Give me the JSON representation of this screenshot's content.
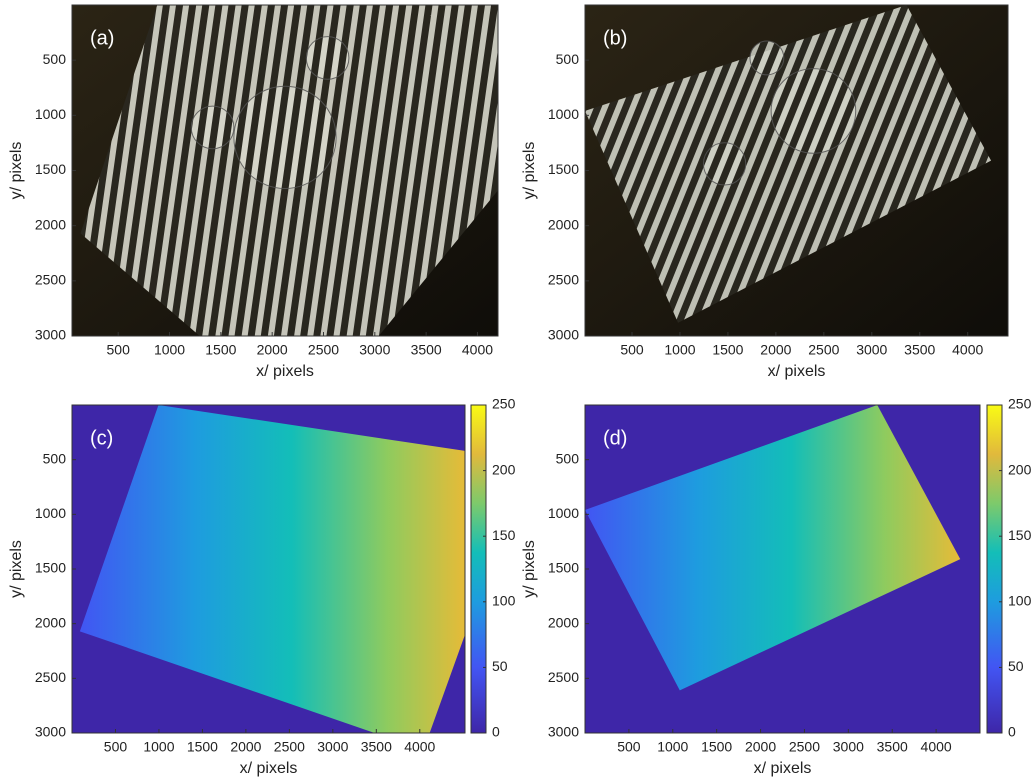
{
  "chart_data": [
    {
      "type": "image",
      "label": "(a)",
      "xlabel": "x/ pixels",
      "ylabel": "y/ pixels",
      "xlim": [
        50,
        4200
      ],
      "ylim": [
        0,
        3000
      ],
      "y_reversed": true,
      "xticks": [
        500,
        1000,
        1500,
        2000,
        2500,
        3000,
        3500,
        4000
      ],
      "yticks": [
        500,
        1000,
        1500,
        2000,
        2500,
        3000
      ]
    },
    {
      "type": "image",
      "label": "(b)",
      "xlabel": "x/ pixels",
      "ylabel": "y/ pixels",
      "xlim": [
        10,
        4420
      ],
      "ylim": [
        0,
        3000
      ],
      "y_reversed": true,
      "xticks": [
        500,
        1000,
        1500,
        2000,
        2500,
        3000,
        3500,
        4000
      ],
      "yticks": [
        500,
        1000,
        1500,
        2000,
        2500,
        3000
      ]
    },
    {
      "type": "image",
      "label": "(c)",
      "xlabel": "x/ pixels",
      "ylabel": "y/ pixels",
      "xlim": [
        0,
        4520
      ],
      "ylim": [
        0,
        3000
      ],
      "y_reversed": true,
      "xticks": [
        500,
        1000,
        1500,
        2000,
        2500,
        3000,
        3500,
        4000
      ],
      "yticks": [
        500,
        1000,
        1500,
        2000,
        2500,
        3000
      ],
      "colormap": "parula",
      "clim": [
        0,
        250
      ],
      "cticks": [
        0,
        50,
        100,
        150,
        200,
        250
      ]
    },
    {
      "type": "image",
      "label": "(d)",
      "xlabel": "x/ pixels",
      "ylabel": "y/ pixels",
      "xlim": [
        0,
        4500
      ],
      "ylim": [
        0,
        3000
      ],
      "y_reversed": true,
      "xticks": [
        500,
        1000,
        1500,
        2000,
        2500,
        3000,
        3500,
        4000
      ],
      "yticks": [
        500,
        1000,
        1500,
        2000,
        2500,
        3000
      ],
      "colormap": "parula",
      "clim": [
        0,
        250
      ],
      "cticks": [
        0,
        50,
        100,
        150,
        200,
        250
      ]
    }
  ]
}
